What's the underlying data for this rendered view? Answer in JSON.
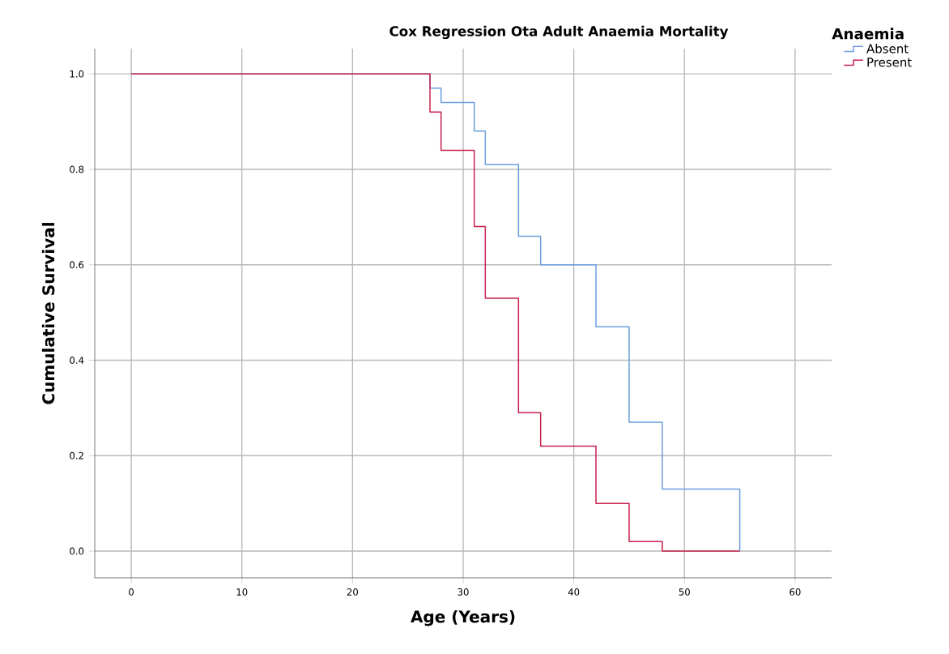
{
  "chart_data": {
    "type": "step",
    "title": "Cox Regression Ota Adult Anaemia Mortality",
    "xlabel": "Age (Years)",
    "ylabel": "Cumulative Survival",
    "legend_title": "Anaemia",
    "x": [
      0,
      27,
      28,
      31,
      32,
      35,
      37,
      42,
      45,
      48,
      55
    ],
    "series": [
      {
        "name": "Absent",
        "color": "#6a9fdd",
        "values": [
          1.0,
          0.97,
          0.94,
          0.88,
          0.81,
          0.66,
          0.6,
          0.47,
          0.27,
          0.13,
          0.0
        ]
      },
      {
        "name": "Present",
        "color": "#c8224e",
        "values": [
          1.0,
          0.92,
          0.84,
          0.68,
          0.53,
          0.29,
          0.22,
          0.1,
          0.02,
          0.0,
          0.0
        ]
      }
    ],
    "xlim": [
      -3.3,
      63.3
    ],
    "ylim": [
      -0.056,
      1.053
    ],
    "xticks": [
      0,
      10,
      20,
      30,
      40,
      50,
      60
    ],
    "yticks": [
      {
        "value": 0,
        "label": "0.0"
      },
      {
        "value": 0.2,
        "label": "0.2"
      },
      {
        "value": 0.4,
        "label": "0.4"
      },
      {
        "value": 0.6,
        "label": "0.6"
      },
      {
        "value": 0.8,
        "label": "0.8"
      },
      {
        "value": 1.0,
        "label": "1.0"
      }
    ],
    "grid": true,
    "legend": "top right",
    "line_style": "solid",
    "marker": "none"
  }
}
